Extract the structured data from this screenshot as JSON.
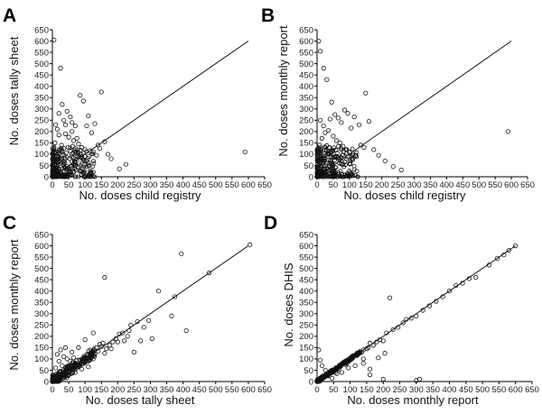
{
  "chart_data": [
    {
      "type": "scatter",
      "panel": "A",
      "xlabel": "No. doses child registry",
      "ylabel": "No. doses tally sheet",
      "xlim": [
        0,
        650
      ],
      "ylim": [
        0,
        650
      ],
      "ticks": [
        0,
        50,
        100,
        150,
        200,
        250,
        300,
        350,
        400,
        450,
        500,
        550,
        600,
        650
      ],
      "reference_line": "y = x",
      "points": [
        [
          5,
          605
        ],
        [
          25,
          480
        ],
        [
          30,
          320
        ],
        [
          45,
          290
        ],
        [
          55,
          265
        ],
        [
          60,
          240
        ],
        [
          70,
          225
        ],
        [
          75,
          170
        ],
        [
          85,
          360
        ],
        [
          95,
          335
        ],
        [
          105,
          225
        ],
        [
          110,
          270
        ],
        [
          120,
          195
        ],
        [
          130,
          235
        ],
        [
          140,
          140
        ],
        [
          150,
          375
        ],
        [
          160,
          155
        ],
        [
          170,
          100
        ],
        [
          180,
          80
        ],
        [
          205,
          35
        ],
        [
          225,
          55
        ],
        [
          590,
          110
        ],
        [
          10,
          230
        ],
        [
          15,
          210
        ],
        [
          20,
          280
        ],
        [
          35,
          250
        ],
        [
          40,
          190
        ],
        [
          50,
          175
        ],
        [
          65,
          160
        ],
        [
          80,
          145
        ],
        [
          90,
          130
        ],
        [
          100,
          120
        ],
        [
          115,
          115
        ],
        [
          125,
          110
        ],
        [
          135,
          95
        ],
        [
          145,
          125
        ],
        [
          60,
          200
        ],
        [
          40,
          230
        ],
        [
          20,
          185
        ],
        [
          8,
          150
        ],
        [
          5,
          10
        ],
        [
          12,
          30
        ],
        [
          18,
          55
        ],
        [
          25,
          75
        ],
        [
          30,
          95
        ],
        [
          38,
          60
        ],
        [
          45,
          45
        ],
        [
          52,
          80
        ],
        [
          60,
          100
        ],
        [
          68,
          70
        ],
        [
          75,
          90
        ],
        [
          82,
          60
        ],
        [
          90,
          85
        ],
        [
          98,
          55
        ],
        [
          105,
          70
        ],
        [
          112,
          90
        ],
        [
          5,
          130
        ],
        [
          10,
          110
        ],
        [
          15,
          90
        ],
        [
          22,
          120
        ],
        [
          28,
          140
        ],
        [
          35,
          125
        ],
        [
          42,
          105
        ],
        [
          48,
          130
        ],
        [
          55,
          115
        ],
        [
          62,
          135
        ],
        [
          70,
          125
        ],
        [
          78,
          110
        ],
        [
          88,
          100
        ],
        [
          95,
          105
        ]
      ]
    },
    {
      "type": "scatter",
      "panel": "B",
      "xlabel": "No. doses child registry",
      "ylabel": "No. doses monthly report",
      "xlim": [
        0,
        650
      ],
      "ylim": [
        0,
        650
      ],
      "ticks": [
        0,
        50,
        100,
        150,
        200,
        250,
        300,
        350,
        400,
        450,
        500,
        550,
        600,
        650
      ],
      "reference_line": "y = x",
      "points": [
        [
          5,
          600
        ],
        [
          10,
          555
        ],
        [
          20,
          480
        ],
        [
          30,
          430
        ],
        [
          45,
          330
        ],
        [
          55,
          275
        ],
        [
          65,
          260
        ],
        [
          75,
          240
        ],
        [
          85,
          295
        ],
        [
          95,
          280
        ],
        [
          105,
          215
        ],
        [
          115,
          265
        ],
        [
          130,
          230
        ],
        [
          150,
          370
        ],
        [
          160,
          245
        ],
        [
          175,
          120
        ],
        [
          190,
          95
        ],
        [
          210,
          70
        ],
        [
          235,
          45
        ],
        [
          260,
          30
        ],
        [
          590,
          200
        ],
        [
          10,
          250
        ],
        [
          20,
          225
        ],
        [
          35,
          205
        ],
        [
          50,
          180
        ],
        [
          60,
          160
        ],
        [
          70,
          150
        ],
        [
          80,
          135
        ],
        [
          90,
          120
        ],
        [
          100,
          110
        ],
        [
          110,
          100
        ],
        [
          120,
          95
        ],
        [
          135,
          140
        ],
        [
          145,
          130
        ],
        [
          40,
          255
        ],
        [
          25,
          195
        ],
        [
          15,
          170
        ],
        [
          8,
          140
        ],
        [
          5,
          15
        ],
        [
          12,
          35
        ],
        [
          18,
          60
        ],
        [
          25,
          80
        ],
        [
          32,
          100
        ],
        [
          40,
          70
        ],
        [
          48,
          50
        ],
        [
          55,
          85
        ],
        [
          62,
          105
        ],
        [
          70,
          75
        ],
        [
          78,
          95
        ],
        [
          86,
          65
        ],
        [
          94,
          88
        ],
        [
          102,
          60
        ],
        [
          110,
          75
        ],
        [
          118,
          92
        ],
        [
          5,
          125
        ],
        [
          12,
          105
        ],
        [
          18,
          92
        ],
        [
          24,
          118
        ],
        [
          30,
          138
        ],
        [
          38,
          128
        ],
        [
          45,
          110
        ],
        [
          52,
          128
        ],
        [
          58,
          118
        ],
        [
          66,
          135
        ],
        [
          74,
          128
        ],
        [
          82,
          112
        ],
        [
          92,
          104
        ],
        [
          100,
          108
        ]
      ]
    },
    {
      "type": "scatter",
      "panel": "C",
      "xlabel": "No. doses tally sheet",
      "ylabel": "No. doses monthly report",
      "xlim": [
        0,
        650
      ],
      "ylim": [
        0,
        650
      ],
      "ticks": [
        0,
        50,
        100,
        150,
        200,
        250,
        300,
        350,
        400,
        450,
        500,
        550,
        600,
        650
      ],
      "reference_line": "y = x",
      "points": [
        [
          605,
          605
        ],
        [
          480,
          480
        ],
        [
          395,
          565
        ],
        [
          160,
          460
        ],
        [
          375,
          375
        ],
        [
          325,
          400
        ],
        [
          365,
          290
        ],
        [
          410,
          225
        ],
        [
          305,
          190
        ],
        [
          260,
          265
        ],
        [
          240,
          250
        ],
        [
          215,
          215
        ],
        [
          195,
          190
        ],
        [
          175,
          160
        ],
        [
          250,
          130
        ],
        [
          270,
          180
        ],
        [
          280,
          240
        ],
        [
          295,
          270
        ],
        [
          230,
          200
        ],
        [
          200,
          175
        ],
        [
          180,
          145
        ],
        [
          160,
          125
        ],
        [
          150,
          155
        ],
        [
          140,
          135
        ],
        [
          130,
          120
        ],
        [
          120,
          110
        ],
        [
          110,
          100
        ],
        [
          100,
          90
        ],
        [
          90,
          95
        ],
        [
          80,
          75
        ],
        [
          70,
          80
        ],
        [
          60,
          65
        ],
        [
          50,
          55
        ],
        [
          40,
          45
        ],
        [
          30,
          35
        ],
        [
          20,
          25
        ],
        [
          10,
          15
        ],
        [
          5,
          10
        ],
        [
          45,
          100
        ],
        [
          35,
          110
        ],
        [
          25,
          140
        ],
        [
          15,
          120
        ],
        [
          55,
          90
        ],
        [
          65,
          105
        ],
        [
          75,
          60
        ],
        [
          85,
          70
        ],
        [
          95,
          80
        ],
        [
          105,
          120
        ],
        [
          115,
          95
        ],
        [
          125,
          100
        ],
        [
          135,
          150
        ],
        [
          145,
          165
        ],
        [
          155,
          170
        ],
        [
          165,
          145
        ],
        [
          185,
          175
        ],
        [
          205,
          210
        ],
        [
          220,
          180
        ],
        [
          235,
          225
        ],
        [
          125,
          215
        ],
        [
          100,
          185
        ],
        [
          80,
          150
        ],
        [
          60,
          130
        ],
        [
          40,
          150
        ],
        [
          20,
          90
        ],
        [
          10,
          60
        ],
        [
          30,
          70
        ],
        [
          50,
          30
        ],
        [
          70,
          40
        ],
        [
          90,
          55
        ],
        [
          110,
          65
        ]
      ]
    },
    {
      "type": "scatter",
      "panel": "D",
      "xlabel": "No. doses monthly report",
      "ylabel": "No. doses DHIS",
      "xlim": [
        0,
        650
      ],
      "ylim": [
        0,
        650
      ],
      "ticks": [
        0,
        50,
        100,
        150,
        200,
        250,
        300,
        350,
        400,
        450,
        500,
        550,
        600,
        650
      ],
      "reference_line": "y = x",
      "points": [
        [
          600,
          600
        ],
        [
          565,
          560
        ],
        [
          480,
          460
        ],
        [
          460,
          455
        ],
        [
          400,
          400
        ],
        [
          360,
          355
        ],
        [
          300,
          290
        ],
        [
          260,
          260
        ],
        [
          220,
          370
        ],
        [
          200,
          180
        ],
        [
          180,
          175
        ],
        [
          160,
          170
        ],
        [
          150,
          145
        ],
        [
          140,
          140
        ],
        [
          130,
          125
        ],
        [
          120,
          115
        ],
        [
          110,
          110
        ],
        [
          100,
          95
        ],
        [
          90,
          90
        ],
        [
          80,
          80
        ],
        [
          70,
          70
        ],
        [
          60,
          60
        ],
        [
          50,
          50
        ],
        [
          40,
          40
        ],
        [
          30,
          30
        ],
        [
          20,
          20
        ],
        [
          10,
          10
        ],
        [
          5,
          5
        ],
        [
          5,
          140
        ],
        [
          10,
          95
        ],
        [
          15,
          70
        ],
        [
          25,
          50
        ],
        [
          35,
          25
        ],
        [
          45,
          15
        ],
        [
          60,
          35
        ],
        [
          75,
          40
        ],
        [
          95,
          60
        ],
        [
          115,
          70
        ],
        [
          140,
          80
        ],
        [
          160,
          55
        ],
        [
          185,
          105
        ],
        [
          205,
          125
        ],
        [
          160,
          30
        ],
        [
          200,
          10
        ],
        [
          300,
          5
        ],
        [
          310,
          10
        ],
        [
          210,
          215
        ],
        [
          230,
          230
        ],
        [
          245,
          240
        ],
        [
          270,
          275
        ],
        [
          285,
          280
        ],
        [
          320,
          315
        ],
        [
          340,
          335
        ],
        [
          380,
          375
        ],
        [
          420,
          425
        ],
        [
          440,
          435
        ],
        [
          520,
          515
        ],
        [
          545,
          545
        ],
        [
          580,
          580
        ],
        [
          90,
          80
        ],
        [
          120,
          125
        ],
        [
          140,
          100
        ],
        [
          170,
          160
        ],
        [
          190,
          185
        ],
        [
          55,
          40
        ],
        [
          65,
          55
        ],
        [
          85,
          75
        ],
        [
          105,
          100
        ],
        [
          135,
          130
        ],
        [
          155,
          150
        ]
      ]
    }
  ],
  "panels": {
    "A": {
      "letter": "A"
    },
    "B": {
      "letter": "B"
    },
    "C": {
      "letter": "C"
    },
    "D": {
      "letter": "D"
    }
  }
}
